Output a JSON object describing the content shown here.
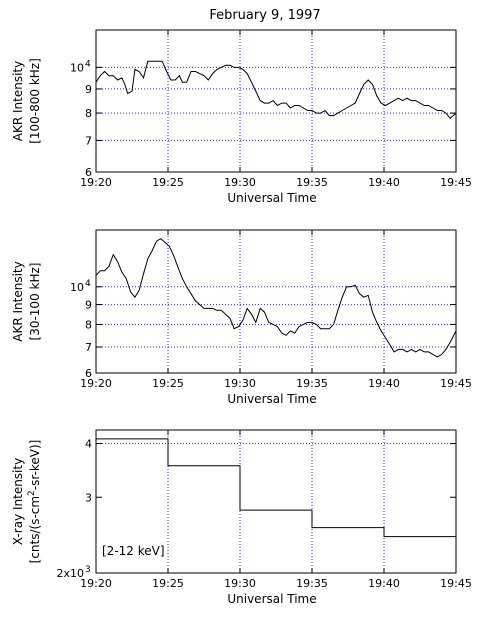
{
  "figure_title": "February 9, 1997",
  "chart_data": [
    {
      "type": "line",
      "title": "",
      "ylabel_line1": "AKR Intensity",
      "ylabel_line2": "[100-800 kHz]",
      "xlabel": "Universal Time",
      "x_unit": "minutes after 19:00 UT",
      "xlim": [
        20,
        45
      ],
      "x_ticks": [
        {
          "value": 20,
          "label": "19:20"
        },
        {
          "value": 25,
          "label": "19:25"
        },
        {
          "value": 30,
          "label": "19:30"
        },
        {
          "value": 35,
          "label": "19:35"
        },
        {
          "value": 40,
          "label": "19:40"
        },
        {
          "value": 45,
          "label": "19:45"
        }
      ],
      "y_scale": "log",
      "ylim": [
        6.0,
        12.0
      ],
      "y_ticks": [
        {
          "value": 6,
          "label": "6"
        },
        {
          "value": 7,
          "label": "7"
        },
        {
          "value": 8,
          "label": "8"
        },
        {
          "value": 9,
          "label": "9"
        },
        {
          "value": 10,
          "label": "10",
          "exp": "4"
        }
      ],
      "grid": "x-dotted at 19:25-19:40, y-dotted at 7,8,9,10",
      "series": [
        {
          "color": "#000000",
          "x": [
            20.0,
            20.3,
            20.6,
            20.9,
            21.2,
            21.5,
            21.8,
            22.0,
            22.2,
            22.5,
            22.7,
            23.0,
            23.3,
            23.6,
            24.0,
            24.3,
            24.6,
            24.9,
            25.2,
            25.5,
            25.8,
            26.0,
            26.3,
            26.6,
            26.9,
            27.2,
            27.5,
            27.8,
            28.1,
            28.4,
            28.7,
            29.0,
            29.3,
            29.6,
            29.9,
            30.2,
            30.5,
            30.8,
            31.1,
            31.4,
            31.7,
            32.0,
            32.3,
            32.6,
            32.9,
            33.2,
            33.5,
            33.8,
            34.1,
            34.4,
            34.7,
            35.0,
            35.3,
            35.6,
            35.9,
            36.2,
            36.5,
            36.8,
            37.1,
            37.4,
            37.7,
            38.0,
            38.3,
            38.6,
            38.9,
            39.2,
            39.5,
            39.8,
            40.1,
            40.4,
            40.7,
            41.0,
            41.3,
            41.6,
            41.9,
            42.2,
            42.5,
            42.8,
            43.1,
            43.4,
            43.7,
            44.0,
            44.3,
            44.6,
            45.0
          ],
          "y": [
            9.3,
            9.6,
            9.8,
            9.6,
            9.6,
            9.4,
            9.5,
            9.2,
            8.8,
            8.9,
            9.9,
            9.8,
            9.5,
            10.3,
            10.3,
            10.3,
            10.3,
            9.8,
            9.4,
            9.4,
            9.6,
            9.3,
            9.3,
            9.8,
            9.8,
            9.7,
            9.6,
            9.4,
            9.7,
            9.9,
            10.0,
            10.1,
            10.1,
            10.0,
            10.0,
            9.9,
            9.7,
            9.3,
            8.9,
            8.5,
            8.4,
            8.4,
            8.5,
            8.3,
            8.4,
            8.4,
            8.2,
            8.3,
            8.3,
            8.2,
            8.1,
            8.1,
            8.0,
            8.0,
            8.1,
            7.9,
            7.9,
            8.0,
            8.1,
            8.2,
            8.3,
            8.4,
            8.8,
            9.2,
            9.4,
            9.2,
            8.7,
            8.4,
            8.3,
            8.4,
            8.5,
            8.6,
            8.5,
            8.6,
            8.5,
            8.5,
            8.4,
            8.3,
            8.3,
            8.2,
            8.1,
            8.1,
            8.0,
            7.8,
            8.0
          ]
        }
      ]
    },
    {
      "type": "line",
      "title": "",
      "ylabel_line1": "AKR Intensity",
      "ylabel_line2": "[30-100 kHz]",
      "xlabel": "Universal Time",
      "x_unit": "minutes after 19:00 UT",
      "xlim": [
        20,
        45
      ],
      "x_ticks": [
        {
          "value": 20,
          "label": "19:20"
        },
        {
          "value": 25,
          "label": "19:25"
        },
        {
          "value": 30,
          "label": "19:30"
        },
        {
          "value": 35,
          "label": "19:35"
        },
        {
          "value": 40,
          "label": "19:40"
        },
        {
          "value": 45,
          "label": "19:45"
        }
      ],
      "y_scale": "log",
      "ylim": [
        6.0,
        14.0
      ],
      "y_ticks": [
        {
          "value": 6,
          "label": "6"
        },
        {
          "value": 7,
          "label": "7"
        },
        {
          "value": 8,
          "label": "8"
        },
        {
          "value": 9,
          "label": "9"
        },
        {
          "value": 10,
          "label": "10",
          "exp": "4"
        }
      ],
      "grid": "x-dotted at 19:25-19:40, y-dotted at 7,8,9,10",
      "series": [
        {
          "color": "#000000",
          "x": [
            20.0,
            20.3,
            20.6,
            20.9,
            21.2,
            21.5,
            21.8,
            22.1,
            22.4,
            22.7,
            23.0,
            23.3,
            23.6,
            23.9,
            24.2,
            24.5,
            24.8,
            25.1,
            25.4,
            25.7,
            26.0,
            26.3,
            26.6,
            26.9,
            27.2,
            27.5,
            27.8,
            28.1,
            28.4,
            28.7,
            29.0,
            29.3,
            29.6,
            29.9,
            30.2,
            30.5,
            30.8,
            31.1,
            31.4,
            31.7,
            32.0,
            32.3,
            32.6,
            32.9,
            33.2,
            33.5,
            33.8,
            34.1,
            34.4,
            34.7,
            35.0,
            35.3,
            35.6,
            35.9,
            36.2,
            36.5,
            36.8,
            37.1,
            37.4,
            37.7,
            38.0,
            38.3,
            38.6,
            38.9,
            39.2,
            39.5,
            39.8,
            40.1,
            40.4,
            40.7,
            41.0,
            41.3,
            41.6,
            41.9,
            42.2,
            42.5,
            42.8,
            43.1,
            43.4,
            43.7,
            44.0,
            44.3,
            44.6,
            45.0
          ],
          "y": [
            10.7,
            11.0,
            11.0,
            11.3,
            12.1,
            11.6,
            10.9,
            10.5,
            9.7,
            9.4,
            9.8,
            10.8,
            11.8,
            12.4,
            13.1,
            13.3,
            13.0,
            12.7,
            12.0,
            11.2,
            10.5,
            10.0,
            9.6,
            9.2,
            9.0,
            8.8,
            8.8,
            8.8,
            8.7,
            8.7,
            8.5,
            8.3,
            7.8,
            7.9,
            8.2,
            8.8,
            8.5,
            8.1,
            8.8,
            8.6,
            8.1,
            8.0,
            7.9,
            7.6,
            7.5,
            7.7,
            7.6,
            7.9,
            8.0,
            8.1,
            8.1,
            8.0,
            7.8,
            7.8,
            7.8,
            8.0,
            8.7,
            9.4,
            10.0,
            10.0,
            10.1,
            9.6,
            9.4,
            9.5,
            8.6,
            8.1,
            7.7,
            7.4,
            7.1,
            6.8,
            6.9,
            6.9,
            6.8,
            6.9,
            6.8,
            6.9,
            6.8,
            6.8,
            6.7,
            6.6,
            6.7,
            6.9,
            7.2,
            7.7
          ]
        }
      ]
    },
    {
      "type": "line",
      "title": "",
      "ylabel_line1": "X-ray Intensity",
      "ylabel_line2": "[cnts/(s-cm",
      "ylabel_sup": "2",
      "ylabel_line2_end": "-sr-keV)]",
      "xlabel": "Universal Time",
      "annotation": "[2-12 keV]",
      "x_unit": "minutes after 19:00 UT",
      "xlim": [
        20,
        45
      ],
      "x_ticks": [
        {
          "value": 20,
          "label": "19:20"
        },
        {
          "value": 25,
          "label": "19:25"
        },
        {
          "value": 30,
          "label": "19:30"
        },
        {
          "value": 35,
          "label": "19:35"
        },
        {
          "value": 40,
          "label": "19:40"
        },
        {
          "value": 45,
          "label": "19:45"
        }
      ],
      "y_scale": "log",
      "ylim": [
        2000,
        4300
      ],
      "y_ticks": [
        {
          "value": 2000,
          "label": "2x10",
          "exp": "3"
        },
        {
          "value": 3000,
          "label": "3"
        },
        {
          "value": 4000,
          "label": "4"
        }
      ],
      "grid": "x-dotted at 19:25-19:40, y-dotted at 4",
      "series": [
        {
          "color": "#000000",
          "step": true,
          "x": [
            20,
            25,
            30,
            35,
            40,
            45
          ],
          "y": [
            4100,
            3550,
            2800,
            2550,
            2430,
            2430
          ]
        }
      ]
    }
  ]
}
